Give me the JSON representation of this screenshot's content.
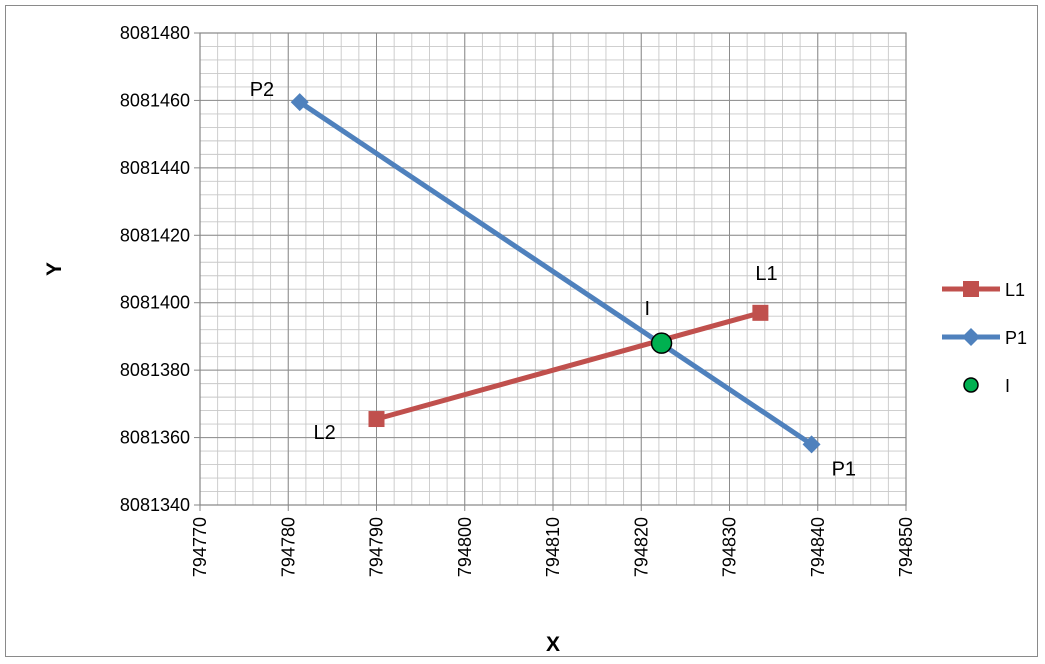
{
  "chart_data": {
    "type": "scatter",
    "title": "",
    "xlabel": "X",
    "ylabel": "Y",
    "xlim": [
      794770,
      794850
    ],
    "ylim": [
      8081340,
      8081480
    ],
    "x_ticks": [
      "794770",
      "794780",
      "794790",
      "794800",
      "794810",
      "794820",
      "794830",
      "794840",
      "794850"
    ],
    "y_ticks": [
      "8081340",
      "8081360",
      "8081380",
      "8081400",
      "8081420",
      "8081440",
      "8081460",
      "8081480"
    ],
    "grid": true,
    "x_minor_step": 2,
    "y_minor_step": 4,
    "legend_position": "right",
    "series": [
      {
        "name": "L1",
        "marker": "square",
        "color": "#c0504d",
        "points": [
          {
            "x": 794790,
            "y": 8081365.5
          },
          {
            "x": 794833.5,
            "y": 8081397
          }
        ]
      },
      {
        "name": "P1",
        "marker": "diamond",
        "color": "#4f81bd",
        "points": [
          {
            "x": 794839.3,
            "y": 8081358
          },
          {
            "x": 794781.3,
            "y": 8081459.5
          }
        ]
      },
      {
        "name": "I",
        "marker": "circle",
        "color": "#00b050",
        "line": false,
        "points": [
          {
            "x": 794822.3,
            "y": 8081388
          }
        ]
      }
    ],
    "annotations": [
      {
        "text": "P2",
        "x": 794781.3,
        "y": 8081459.5,
        "anchor": "left-top"
      },
      {
        "text": "P1",
        "x": 794839.3,
        "y": 8081358,
        "anchor": "right-bottom"
      },
      {
        "text": "L1",
        "x": 794833.5,
        "y": 8081397,
        "anchor": "above-right"
      },
      {
        "text": "L2",
        "x": 794790,
        "y": 8081365.5,
        "anchor": "left-below"
      },
      {
        "text": "I",
        "x": 794822.3,
        "y": 8081388,
        "anchor": "above-left"
      }
    ]
  }
}
